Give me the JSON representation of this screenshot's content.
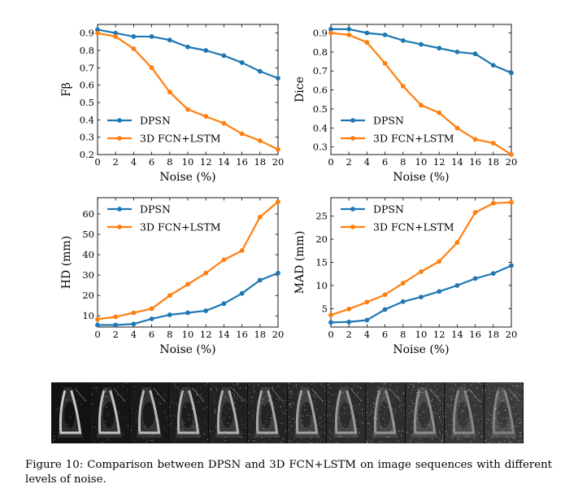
{
  "colors": {
    "series1": "#1f77b4",
    "series2": "#ff7f0e"
  },
  "chart_data": [
    {
      "type": "line",
      "xlabel": "Noise (%)",
      "ylabel": "Fβ",
      "x": [
        0,
        2,
        4,
        6,
        8,
        10,
        12,
        14,
        16,
        18,
        20
      ],
      "xticks": [
        "0",
        "2",
        "4",
        "6",
        "8",
        "10",
        "12",
        "14",
        "16",
        "18",
        "20"
      ],
      "ylim": [
        0.2,
        0.95
      ],
      "yticks": [
        "0.2",
        "0.3",
        "0.4",
        "0.5",
        "0.6",
        "0.7",
        "0.8",
        "0.9"
      ],
      "yticks_values": [
        0.2,
        0.3,
        0.4,
        0.5,
        0.6,
        0.7,
        0.8,
        0.9
      ],
      "legend_position": "center-left",
      "series": [
        {
          "name": "DPSN",
          "values": [
            0.92,
            0.9,
            0.88,
            0.88,
            0.86,
            0.82,
            0.8,
            0.77,
            0.73,
            0.68,
            0.64
          ]
        },
        {
          "name": "3D FCN+LSTM",
          "values": [
            0.9,
            0.88,
            0.81,
            0.7,
            0.56,
            0.46,
            0.42,
            0.38,
            0.32,
            0.28,
            0.23
          ]
        }
      ]
    },
    {
      "type": "line",
      "xlabel": "Noise (%)",
      "ylabel": "Dice",
      "x": [
        0,
        2,
        4,
        6,
        8,
        10,
        12,
        14,
        16,
        18,
        20
      ],
      "xticks": [
        "0",
        "2",
        "4",
        "6",
        "8",
        "10",
        "12",
        "14",
        "16",
        "18",
        "20"
      ],
      "ylim": [
        0.26,
        0.945
      ],
      "yticks": [
        "0.3",
        "0.4",
        "0.5",
        "0.6",
        "0.7",
        "0.8",
        "0.9"
      ],
      "yticks_values": [
        0.3,
        0.4,
        0.5,
        0.6,
        0.7,
        0.8,
        0.9
      ],
      "legend_position": "center-left",
      "series": [
        {
          "name": "DPSN",
          "values": [
            0.92,
            0.92,
            0.9,
            0.89,
            0.86,
            0.84,
            0.82,
            0.8,
            0.79,
            0.73,
            0.69
          ]
        },
        {
          "name": "3D FCN+LSTM",
          "values": [
            0.9,
            0.89,
            0.85,
            0.74,
            0.62,
            0.52,
            0.48,
            0.4,
            0.34,
            0.32,
            0.26
          ]
        }
      ]
    },
    {
      "type": "line",
      "xlabel": "Noise (%)",
      "ylabel": "HD (mm)",
      "x": [
        0,
        2,
        4,
        6,
        8,
        10,
        12,
        14,
        16,
        18,
        20
      ],
      "xticks": [
        "0",
        "2",
        "4",
        "6",
        "8",
        "10",
        "12",
        "14",
        "16",
        "18",
        "20"
      ],
      "ylim": [
        4.5,
        68
      ],
      "yticks": [
        "10",
        "20",
        "30",
        "40",
        "50",
        "60"
      ],
      "yticks_values": [
        10,
        20,
        30,
        40,
        50,
        60
      ],
      "legend_position": "upper-left",
      "series": [
        {
          "name": "DPSN",
          "values": [
            5.5,
            5.5,
            6,
            8.5,
            10.5,
            11.5,
            12.5,
            16,
            21,
            27.5,
            31
          ]
        },
        {
          "name": "3D FCN+LSTM",
          "values": [
            8.3,
            9.5,
            11.5,
            13.5,
            20,
            25.5,
            31,
            37.5,
            42,
            58.5,
            66
          ]
        }
      ]
    },
    {
      "type": "line",
      "xlabel": "Noise (%)",
      "ylabel": "MAD (mm)",
      "x": [
        0,
        2,
        4,
        6,
        8,
        10,
        12,
        14,
        16,
        18,
        20
      ],
      "xticks": [
        "0",
        "2",
        "4",
        "6",
        "8",
        "10",
        "12",
        "14",
        "16",
        "18",
        "20"
      ],
      "ylim": [
        1.0,
        29.0
      ],
      "yticks": [
        "5",
        "10",
        "15",
        "20",
        "25"
      ],
      "yticks_values": [
        5,
        10,
        15,
        20,
        25
      ],
      "legend_position": "upper-left",
      "series": [
        {
          "name": "DPSN",
          "values": [
            2,
            2.1,
            2.5,
            4.8,
            6.5,
            7.5,
            8.7,
            10,
            11.5,
            12.6,
            14.3
          ]
        },
        {
          "name": "3D FCN+LSTM",
          "values": [
            3.6,
            4.9,
            6.4,
            8,
            10.5,
            13,
            15.2,
            19.3,
            25.8,
            27.8,
            28
          ]
        }
      ]
    }
  ],
  "image_strip": {
    "frame_count": 12
  },
  "caption": {
    "text": "Figure 10:  Comparison between DPSN and 3D FCN+LSTM on image sequences with different levels of noise."
  }
}
